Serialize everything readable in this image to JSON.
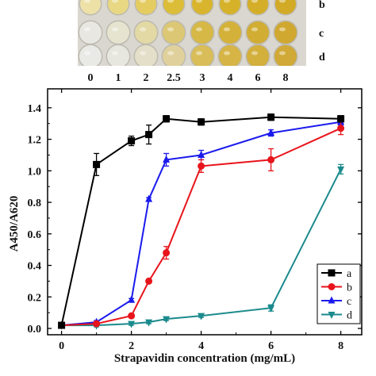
{
  "plate": {
    "row_labels": [
      "b",
      "c",
      "d"
    ],
    "column_labels": [
      "0",
      "1",
      "2",
      "2.5",
      "3",
      "4",
      "6",
      "8"
    ],
    "colors": {
      "background": "#d9d7cf",
      "rows": [
        [
          "#ede1a8",
          "#e8d884",
          "#e5cc60",
          "#dcbd38",
          "#d8b52c",
          "#d6b22a",
          "#d4ae28",
          "#d2aa26"
        ],
        [
          "#e8e7e2",
          "#e6e3cf",
          "#e3d9a4",
          "#dcc874",
          "#d6b846",
          "#d4b23a",
          "#d2ad34",
          "#d0a830"
        ],
        [
          "#e9e9e6",
          "#e7e6df",
          "#e4dfc8",
          "#e0d19c",
          "#d9bd58",
          "#d6b546",
          "#d3af3c",
          "#d0a936"
        ]
      ]
    }
  },
  "chart_data": {
    "type": "line",
    "xlabel": "Strapavidin concentration (mg/mL)",
    "ylabel": "A450/A620",
    "xlim": [
      -0.4,
      8.6
    ],
    "ylim": [
      -0.04,
      1.52
    ],
    "xticks": [
      0,
      2,
      4,
      6,
      8
    ],
    "yticks": [
      0.0,
      0.2,
      0.4,
      0.6,
      0.8,
      1.0,
      1.2,
      1.4
    ],
    "ytick_labels": [
      "0.0",
      "0.2",
      "0.4",
      "0.6",
      "0.8",
      "1.0",
      "1.2",
      "1.4"
    ],
    "legend_position": "bottom-right",
    "x": [
      0,
      1,
      2,
      2.5,
      3,
      4,
      6,
      8
    ],
    "series": [
      {
        "name": "a",
        "color": "#000000",
        "marker": "square",
        "values": [
          0.02,
          1.04,
          1.19,
          1.23,
          1.33,
          1.31,
          1.34,
          1.33
        ],
        "errors": [
          0.01,
          0.07,
          0.03,
          0.06,
          0.02,
          0.02,
          0.02,
          0.02
        ]
      },
      {
        "name": "b",
        "color": "#e8141b",
        "marker": "circle",
        "values": [
          0.02,
          0.03,
          0.08,
          0.3,
          0.48,
          1.03,
          1.07,
          1.27
        ],
        "errors": [
          0.01,
          0.01,
          0.01,
          0.01,
          0.04,
          0.04,
          0.07,
          0.04
        ]
      },
      {
        "name": "c",
        "color": "#1a1aee",
        "marker": "triangle-up",
        "values": [
          0.02,
          0.04,
          0.18,
          0.82,
          1.07,
          1.1,
          1.24,
          1.31
        ],
        "errors": [
          0.01,
          0.01,
          0.01,
          0.01,
          0.04,
          0.03,
          0.02,
          0.02
        ]
      },
      {
        "name": "d",
        "color": "#1a8a8c",
        "marker": "triangle-down",
        "values": [
          0.02,
          0.02,
          0.03,
          0.04,
          0.06,
          0.08,
          0.13,
          1.01
        ],
        "errors": [
          0.01,
          0.01,
          0.01,
          0.01,
          0.01,
          0.01,
          0.02,
          0.03
        ]
      }
    ]
  }
}
